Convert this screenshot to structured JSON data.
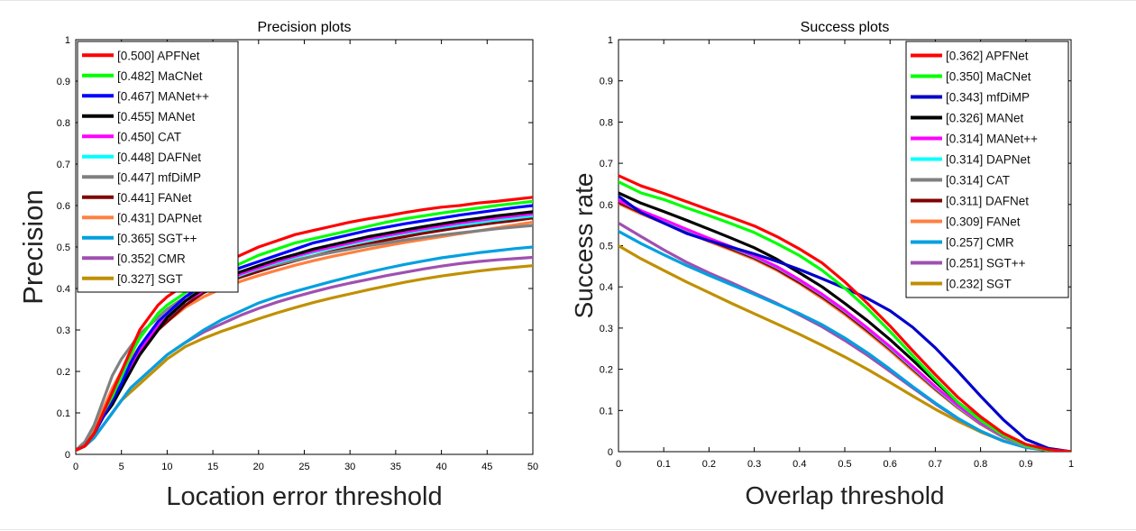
{
  "chart_data": [
    {
      "type": "line",
      "title": "Precision plots",
      "xlabel": "Location error threshold",
      "ylabel": "Precision",
      "xlim": [
        0,
        50
      ],
      "ylim": [
        0,
        1
      ],
      "xticks": [
        "0",
        "5",
        "10",
        "15",
        "20",
        "25",
        "30",
        "35",
        "40",
        "45",
        "50"
      ],
      "yticks": [
        "0",
        "0.1",
        "0.2",
        "0.3",
        "0.4",
        "0.5",
        "0.6",
        "0.7",
        "0.8",
        "0.9",
        "1"
      ],
      "grid": false,
      "legend_position": "top-left",
      "x": [
        0,
        1,
        2,
        3,
        4,
        5,
        6,
        7,
        8,
        9,
        10,
        12,
        14,
        16,
        18,
        20,
        22,
        24,
        26,
        28,
        30,
        32,
        34,
        36,
        38,
        40,
        42,
        44,
        46,
        48,
        50
      ],
      "series": [
        {
          "name": "[0.500] APFNet",
          "color": "#ff0000",
          "values": [
            0.01,
            0.02,
            0.05,
            0.1,
            0.15,
            0.2,
            0.25,
            0.3,
            0.33,
            0.36,
            0.38,
            0.41,
            0.44,
            0.46,
            0.48,
            0.5,
            0.515,
            0.53,
            0.54,
            0.55,
            0.56,
            0.568,
            0.575,
            0.583,
            0.59,
            0.596,
            0.6,
            0.606,
            0.61,
            0.615,
            0.62
          ]
        },
        {
          "name": "[0.482] MaCNet",
          "color": "#00ff00",
          "values": [
            0.01,
            0.02,
            0.05,
            0.1,
            0.14,
            0.19,
            0.24,
            0.28,
            0.31,
            0.34,
            0.36,
            0.39,
            0.42,
            0.44,
            0.46,
            0.48,
            0.495,
            0.51,
            0.52,
            0.53,
            0.54,
            0.55,
            0.56,
            0.568,
            0.575,
            0.582,
            0.588,
            0.594,
            0.6,
            0.605,
            0.61
          ]
        },
        {
          "name": "[0.467] MANet++",
          "color": "#0000ff",
          "values": [
            0.01,
            0.02,
            0.05,
            0.09,
            0.13,
            0.17,
            0.22,
            0.26,
            0.29,
            0.32,
            0.34,
            0.38,
            0.41,
            0.43,
            0.45,
            0.465,
            0.48,
            0.495,
            0.51,
            0.52,
            0.53,
            0.54,
            0.548,
            0.556,
            0.563,
            0.57,
            0.577,
            0.583,
            0.589,
            0.595,
            0.6
          ]
        },
        {
          "name": "[0.455] MANet",
          "color": "#000000",
          "values": [
            0.01,
            0.02,
            0.05,
            0.09,
            0.12,
            0.16,
            0.2,
            0.24,
            0.27,
            0.3,
            0.33,
            0.37,
            0.4,
            0.42,
            0.44,
            0.455,
            0.47,
            0.482,
            0.495,
            0.505,
            0.515,
            0.525,
            0.533,
            0.541,
            0.549,
            0.556,
            0.563,
            0.569,
            0.575,
            0.58,
            0.585
          ]
        },
        {
          "name": "[0.450] CAT",
          "color": "#ff00ff",
          "values": [
            0.01,
            0.02,
            0.05,
            0.09,
            0.13,
            0.17,
            0.21,
            0.25,
            0.28,
            0.31,
            0.33,
            0.37,
            0.395,
            0.415,
            0.435,
            0.45,
            0.465,
            0.478,
            0.49,
            0.5,
            0.51,
            0.52,
            0.528,
            0.536,
            0.544,
            0.551,
            0.558,
            0.564,
            0.57,
            0.575,
            0.58
          ]
        },
        {
          "name": "[0.448] DAFNet",
          "color": "#00ffff",
          "values": [
            0.01,
            0.02,
            0.05,
            0.1,
            0.14,
            0.18,
            0.22,
            0.26,
            0.29,
            0.31,
            0.33,
            0.37,
            0.395,
            0.415,
            0.432,
            0.448,
            0.462,
            0.475,
            0.487,
            0.497,
            0.507,
            0.516,
            0.525,
            0.533,
            0.54,
            0.547,
            0.553,
            0.559,
            0.565,
            0.57,
            0.575
          ]
        },
        {
          "name": "[0.447] mfDiMP",
          "color": "#808080",
          "values": [
            0.01,
            0.03,
            0.07,
            0.13,
            0.19,
            0.23,
            0.26,
            0.29,
            0.31,
            0.33,
            0.35,
            0.38,
            0.4,
            0.418,
            0.433,
            0.447,
            0.458,
            0.468,
            0.478,
            0.487,
            0.495,
            0.503,
            0.51,
            0.517,
            0.523,
            0.529,
            0.534,
            0.539,
            0.544,
            0.548,
            0.552
          ]
        },
        {
          "name": "[0.441] FANet",
          "color": "#800000",
          "values": [
            0.01,
            0.02,
            0.05,
            0.09,
            0.13,
            0.17,
            0.21,
            0.24,
            0.27,
            0.3,
            0.32,
            0.36,
            0.39,
            0.41,
            0.427,
            0.441,
            0.455,
            0.467,
            0.478,
            0.489,
            0.499,
            0.508,
            0.517,
            0.525,
            0.533,
            0.54,
            0.547,
            0.553,
            0.559,
            0.564,
            0.57
          ]
        },
        {
          "name": "[0.431] DAPNet",
          "color": "#ff8040",
          "values": [
            0.01,
            0.02,
            0.06,
            0.11,
            0.16,
            0.2,
            0.23,
            0.26,
            0.285,
            0.305,
            0.32,
            0.355,
            0.38,
            0.4,
            0.417,
            0.431,
            0.444,
            0.456,
            0.467,
            0.477,
            0.486,
            0.495,
            0.503,
            0.511,
            0.518,
            0.525,
            0.532,
            0.539,
            0.546,
            0.553,
            0.56
          ]
        },
        {
          "name": "[0.365] SGT++",
          "color": "#00a0e0",
          "values": [
            0.01,
            0.02,
            0.04,
            0.07,
            0.1,
            0.13,
            0.16,
            0.18,
            0.2,
            0.22,
            0.24,
            0.27,
            0.3,
            0.325,
            0.345,
            0.365,
            0.38,
            0.393,
            0.405,
            0.417,
            0.428,
            0.439,
            0.449,
            0.458,
            0.466,
            0.474,
            0.48,
            0.486,
            0.491,
            0.496,
            0.5
          ]
        },
        {
          "name": "[0.352] CMR",
          "color": "#a050b0",
          "values": [
            0.01,
            0.02,
            0.04,
            0.07,
            0.1,
            0.13,
            0.16,
            0.18,
            0.2,
            0.22,
            0.24,
            0.27,
            0.295,
            0.315,
            0.335,
            0.352,
            0.367,
            0.38,
            0.392,
            0.403,
            0.413,
            0.422,
            0.431,
            0.439,
            0.447,
            0.454,
            0.46,
            0.465,
            0.469,
            0.472,
            0.475
          ]
        },
        {
          "name": "[0.327] SGT",
          "color": "#c09000",
          "values": [
            0.01,
            0.02,
            0.04,
            0.07,
            0.1,
            0.13,
            0.15,
            0.17,
            0.19,
            0.21,
            0.23,
            0.26,
            0.28,
            0.297,
            0.312,
            0.327,
            0.341,
            0.354,
            0.366,
            0.377,
            0.387,
            0.397,
            0.406,
            0.415,
            0.423,
            0.43,
            0.436,
            0.442,
            0.447,
            0.451,
            0.455
          ]
        }
      ]
    },
    {
      "type": "line",
      "title": "Success plots",
      "xlabel": "Overlap threshold",
      "ylabel": "Success rate",
      "xlim": [
        0,
        1
      ],
      "ylim": [
        0,
        1
      ],
      "xticks": [
        "0",
        "0.1",
        "0.2",
        "0.3",
        "0.4",
        "0.5",
        "0.6",
        "0.7",
        "0.8",
        "0.9",
        "1"
      ],
      "yticks": [
        "0",
        "0.1",
        "0.2",
        "0.3",
        "0.4",
        "0.5",
        "0.6",
        "0.7",
        "0.8",
        "0.9",
        "1"
      ],
      "grid": false,
      "legend_position": "top-right",
      "x": [
        0,
        0.05,
        0.1,
        0.15,
        0.2,
        0.25,
        0.3,
        0.35,
        0.4,
        0.45,
        0.5,
        0.55,
        0.6,
        0.65,
        0.7,
        0.75,
        0.8,
        0.85,
        0.9,
        0.95,
        1.0
      ],
      "series": [
        {
          "name": "[0.362] APFNet",
          "color": "#ff0000",
          "values": [
            0.67,
            0.645,
            0.627,
            0.607,
            0.587,
            0.568,
            0.548,
            0.522,
            0.492,
            0.458,
            0.412,
            0.36,
            0.305,
            0.245,
            0.187,
            0.132,
            0.085,
            0.045,
            0.018,
            0.005,
            0.0
          ]
        },
        {
          "name": "[0.350] MaCNet",
          "color": "#00ff00",
          "values": [
            0.655,
            0.628,
            0.612,
            0.592,
            0.573,
            0.553,
            0.532,
            0.505,
            0.476,
            0.44,
            0.397,
            0.347,
            0.292,
            0.233,
            0.175,
            0.12,
            0.076,
            0.04,
            0.015,
            0.004,
            0.0
          ]
        },
        {
          "name": "[0.343] mfDiMP",
          "color": "#0000cc",
          "values": [
            0.62,
            0.58,
            0.555,
            0.53,
            0.512,
            0.496,
            0.48,
            0.462,
            0.442,
            0.42,
            0.397,
            0.372,
            0.342,
            0.302,
            0.252,
            0.195,
            0.135,
            0.078,
            0.03,
            0.008,
            0.0
          ]
        },
        {
          "name": "[0.326] MANet",
          "color": "#000000",
          "values": [
            0.628,
            0.603,
            0.583,
            0.562,
            0.54,
            0.518,
            0.495,
            0.467,
            0.434,
            0.4,
            0.36,
            0.318,
            0.272,
            0.222,
            0.17,
            0.12,
            0.077,
            0.042,
            0.016,
            0.004,
            0.0
          ]
        },
        {
          "name": "[0.314] MANet++",
          "color": "#ff00ff",
          "values": [
            0.61,
            0.585,
            0.563,
            0.54,
            0.518,
            0.497,
            0.475,
            0.449,
            0.417,
            0.382,
            0.343,
            0.3,
            0.255,
            0.207,
            0.158,
            0.112,
            0.071,
            0.038,
            0.015,
            0.004,
            0.0
          ]
        },
        {
          "name": "[0.314] DAPNet",
          "color": "#00ffff",
          "values": [
            0.61,
            0.584,
            0.562,
            0.539,
            0.517,
            0.496,
            0.474,
            0.448,
            0.416,
            0.381,
            0.342,
            0.299,
            0.253,
            0.205,
            0.156,
            0.11,
            0.07,
            0.037,
            0.014,
            0.004,
            0.0
          ]
        },
        {
          "name": "[0.314] CAT",
          "color": "#808080",
          "values": [
            0.61,
            0.583,
            0.561,
            0.538,
            0.516,
            0.495,
            0.473,
            0.447,
            0.415,
            0.38,
            0.341,
            0.298,
            0.252,
            0.204,
            0.155,
            0.109,
            0.069,
            0.037,
            0.014,
            0.004,
            0.0
          ]
        },
        {
          "name": "[0.311] DAFNet",
          "color": "#800000",
          "values": [
            0.605,
            0.58,
            0.558,
            0.535,
            0.513,
            0.492,
            0.47,
            0.443,
            0.411,
            0.376,
            0.337,
            0.294,
            0.249,
            0.201,
            0.153,
            0.108,
            0.068,
            0.036,
            0.014,
            0.004,
            0.0
          ]
        },
        {
          "name": "[0.309] FANet",
          "color": "#ff8040",
          "values": [
            0.602,
            0.577,
            0.555,
            0.533,
            0.51,
            0.489,
            0.467,
            0.44,
            0.408,
            0.372,
            0.333,
            0.29,
            0.245,
            0.197,
            0.15,
            0.106,
            0.067,
            0.035,
            0.013,
            0.003,
            0.0
          ]
        },
        {
          "name": "[0.257] CMR",
          "color": "#00a0e0",
          "values": [
            0.535,
            0.505,
            0.478,
            0.452,
            0.428,
            0.405,
            0.382,
            0.358,
            0.335,
            0.308,
            0.276,
            0.24,
            0.2,
            0.158,
            0.118,
            0.081,
            0.05,
            0.026,
            0.01,
            0.003,
            0.0
          ]
        },
        {
          "name": "[0.251] SGT++",
          "color": "#a050b0",
          "values": [
            0.555,
            0.522,
            0.49,
            0.46,
            0.434,
            0.41,
            0.385,
            0.36,
            0.332,
            0.303,
            0.27,
            0.234,
            0.195,
            0.155,
            0.116,
            0.08,
            0.05,
            0.026,
            0.01,
            0.003,
            0.0
          ]
        },
        {
          "name": "[0.232] SGT",
          "color": "#c09000",
          "values": [
            0.5,
            0.468,
            0.44,
            0.412,
            0.386,
            0.36,
            0.335,
            0.31,
            0.285,
            0.258,
            0.23,
            0.2,
            0.168,
            0.135,
            0.103,
            0.074,
            0.048,
            0.026,
            0.011,
            0.003,
            0.0
          ]
        }
      ]
    }
  ]
}
